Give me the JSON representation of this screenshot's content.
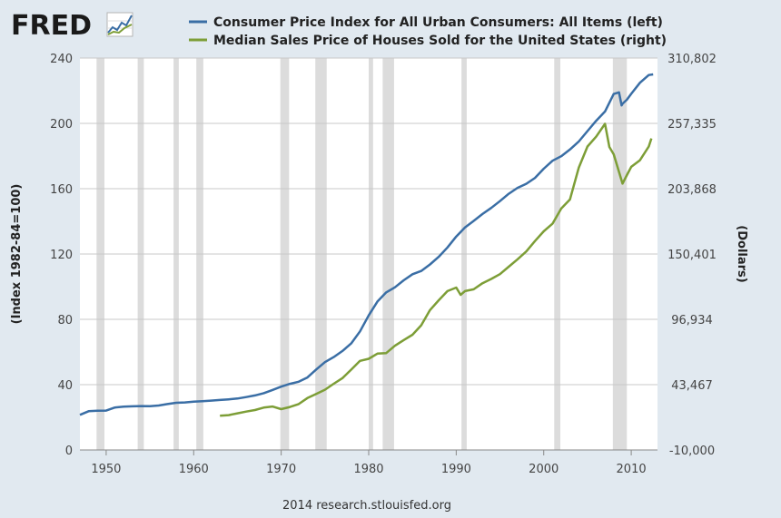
{
  "logo": {
    "text": "FRED"
  },
  "credit": "2014 research.stlouisfed.org",
  "colors": {
    "background": "#e1e9f0",
    "plot_bg": "#ffffff",
    "grid": "#c8c8c8",
    "recession": "#dcdcdc",
    "cpi": "#3a6ea5",
    "house": "#7d9e37",
    "logo": "#1a1a1a"
  },
  "chart_data": {
    "type": "line",
    "x_ticks": [
      "1950",
      "1960",
      "1970",
      "1980",
      "1990",
      "2000",
      "2010"
    ],
    "xlim": [
      1947,
      2013
    ],
    "left_axis": {
      "label": "(Index 1982-84=100)",
      "ticks": [
        "0",
        "40",
        "80",
        "120",
        "160",
        "200",
        "240"
      ],
      "ylim": [
        0,
        240
      ]
    },
    "right_axis": {
      "label": "(Dollars)",
      "ticks": [
        "-10,000",
        "43,467",
        "96,934",
        "150,401",
        "203,868",
        "257,335",
        "310,802"
      ],
      "ylim": [
        -10000,
        310802
      ]
    },
    "grid": true,
    "recessions": [
      [
        1948.9,
        1949.8
      ],
      [
        1953.6,
        1954.3
      ],
      [
        1957.7,
        1958.3
      ],
      [
        1960.3,
        1961.1
      ],
      [
        1969.9,
        1970.9
      ],
      [
        1973.9,
        1975.2
      ],
      [
        1980.0,
        1980.5
      ],
      [
        1981.6,
        1982.9
      ],
      [
        1990.6,
        1991.2
      ],
      [
        2001.2,
        2001.9
      ],
      [
        2007.9,
        2009.5
      ]
    ],
    "series": [
      {
        "name": "Consumer Price Index for All Urban Consumers: All Items (left)",
        "axis": "left",
        "points": [
          [
            1947,
            21.5
          ],
          [
            1948,
            23.7
          ],
          [
            1949,
            24.0
          ],
          [
            1950,
            24.1
          ],
          [
            1951,
            26.0
          ],
          [
            1952,
            26.5
          ],
          [
            1953,
            26.7
          ],
          [
            1954,
            26.9
          ],
          [
            1955,
            26.8
          ],
          [
            1956,
            27.2
          ],
          [
            1957,
            28.1
          ],
          [
            1958,
            28.9
          ],
          [
            1959,
            29.1
          ],
          [
            1960,
            29.6
          ],
          [
            1961,
            29.9
          ],
          [
            1962,
            30.2
          ],
          [
            1963,
            30.6
          ],
          [
            1964,
            31.0
          ],
          [
            1965,
            31.5
          ],
          [
            1966,
            32.4
          ],
          [
            1967,
            33.4
          ],
          [
            1968,
            34.8
          ],
          [
            1969,
            36.7
          ],
          [
            1970,
            38.8
          ],
          [
            1971,
            40.5
          ],
          [
            1972,
            41.8
          ],
          [
            1973,
            44.4
          ],
          [
            1974,
            49.3
          ],
          [
            1975,
            53.8
          ],
          [
            1976,
            56.9
          ],
          [
            1977,
            60.6
          ],
          [
            1978,
            65.2
          ],
          [
            1979,
            72.6
          ],
          [
            1980,
            82.4
          ],
          [
            1981,
            90.9
          ],
          [
            1982,
            96.5
          ],
          [
            1983,
            99.6
          ],
          [
            1984,
            103.9
          ],
          [
            1985,
            107.6
          ],
          [
            1986,
            109.6
          ],
          [
            1987,
            113.6
          ],
          [
            1988,
            118.3
          ],
          [
            1989,
            124.0
          ],
          [
            1990,
            130.7
          ],
          [
            1991,
            136.2
          ],
          [
            1992,
            140.3
          ],
          [
            1993,
            144.5
          ],
          [
            1994,
            148.2
          ],
          [
            1995,
            152.4
          ],
          [
            1996,
            156.9
          ],
          [
            1997,
            160.5
          ],
          [
            1998,
            163.0
          ],
          [
            1999,
            166.6
          ],
          [
            2000,
            172.2
          ],
          [
            2001,
            177.1
          ],
          [
            2002,
            179.9
          ],
          [
            2003,
            184.0
          ],
          [
            2004,
            188.9
          ],
          [
            2005,
            195.3
          ],
          [
            2006,
            201.6
          ],
          [
            2007,
            207.3
          ],
          [
            2008,
            218.0
          ],
          [
            2008.6,
            219.0
          ],
          [
            2008.9,
            211.0
          ],
          [
            2009,
            212.0
          ],
          [
            2009.5,
            214.5
          ],
          [
            2010,
            218.1
          ],
          [
            2011,
            224.9
          ],
          [
            2012,
            229.6
          ],
          [
            2012.5,
            230.0
          ]
        ]
      },
      {
        "name": "Median Sales Price of Houses Sold for the United States (right)",
        "axis": "right",
        "points": [
          [
            1963,
            18000
          ],
          [
            1964,
            18500
          ],
          [
            1965,
            20000
          ],
          [
            1966,
            21400
          ],
          [
            1967,
            22700
          ],
          [
            1968,
            24700
          ],
          [
            1969,
            25600
          ],
          [
            1970,
            23400
          ],
          [
            1971,
            25200
          ],
          [
            1972,
            27600
          ],
          [
            1973,
            32500
          ],
          [
            1974,
            35900
          ],
          [
            1975,
            39300
          ],
          [
            1976,
            44200
          ],
          [
            1977,
            48800
          ],
          [
            1978,
            55700
          ],
          [
            1979,
            62900
          ],
          [
            1980,
            64600
          ],
          [
            1981,
            68900
          ],
          [
            1982,
            69300
          ],
          [
            1983,
            75300
          ],
          [
            1984,
            79900
          ],
          [
            1985,
            84300
          ],
          [
            1986,
            92000
          ],
          [
            1987,
            104500
          ],
          [
            1988,
            112500
          ],
          [
            1989,
            120000
          ],
          [
            1990,
            122900
          ],
          [
            1990.5,
            117000
          ],
          [
            1991,
            120000
          ],
          [
            1992,
            121500
          ],
          [
            1993,
            126500
          ],
          [
            1994,
            130000
          ],
          [
            1995,
            133900
          ],
          [
            1996,
            140000
          ],
          [
            1997,
            146000
          ],
          [
            1998,
            152500
          ],
          [
            1999,
            161000
          ],
          [
            2000,
            169000
          ],
          [
            2001,
            175200
          ],
          [
            2002,
            187600
          ],
          [
            2003,
            195000
          ],
          [
            2004,
            221000
          ],
          [
            2005,
            238400
          ],
          [
            2006,
            246500
          ],
          [
            2007,
            257000
          ],
          [
            2007.5,
            238000
          ],
          [
            2008,
            232000
          ],
          [
            2009,
            208000
          ],
          [
            2009.5,
            215000
          ],
          [
            2010,
            221800
          ],
          [
            2011,
            227200
          ],
          [
            2012,
            238400
          ],
          [
            2012.3,
            245000
          ]
        ]
      }
    ]
  }
}
